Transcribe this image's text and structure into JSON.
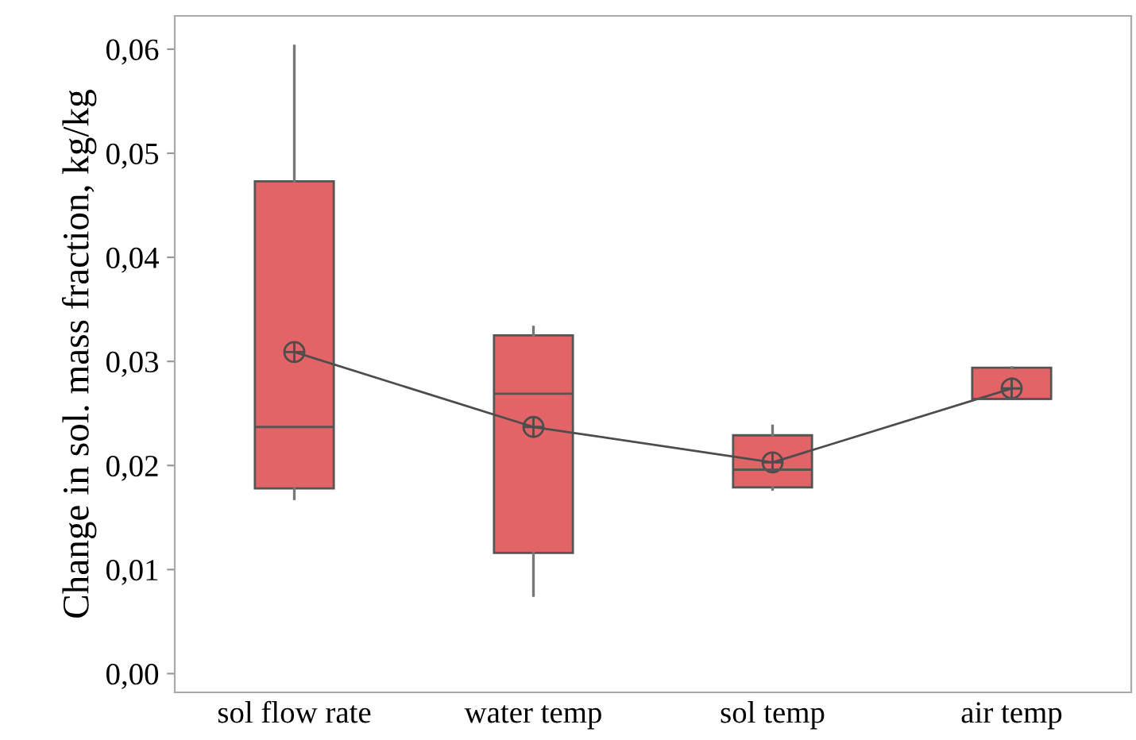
{
  "chart_data": {
    "type": "box",
    "ylabel": "Change in sol. mass fraction, kg/kg",
    "categories": [
      "sol flow rate",
      "water temp",
      "sol temp",
      "air temp"
    ],
    "color": "#e36466",
    "boxes": [
      {
        "low": 0.0168,
        "q1": 0.0178,
        "median": 0.0237,
        "q3": 0.0473,
        "high": 0.0603
      },
      {
        "low": 0.0075,
        "q1": 0.0116,
        "median": 0.0269,
        "q3": 0.0325,
        "high": 0.0333
      },
      {
        "low": 0.0177,
        "q1": 0.0179,
        "median": 0.0196,
        "q3": 0.0229,
        "high": 0.0238
      },
      {
        "low": 0.0264,
        "q1": 0.0264,
        "median": 0.0264,
        "q3": 0.0294,
        "high": 0.0294
      }
    ],
    "series": [
      {
        "type": "line",
        "color": "#4d4d4d",
        "marker": "circle",
        "x": [
          "sol flow rate",
          "water temp",
          "sol temp",
          "air temp"
        ],
        "values": [
          0.0309,
          0.0237,
          0.0203,
          0.0274
        ]
      }
    ],
    "ylim": [
      -0.0018,
      0.0632
    ],
    "yticks": [
      {
        "value": 0,
        "label": "0,00"
      },
      {
        "value": 0.01,
        "label": "0,01"
      },
      {
        "value": 0.02,
        "label": "0,02"
      },
      {
        "value": 0.03,
        "label": "0,03"
      },
      {
        "value": 0.04,
        "label": "0,04"
      },
      {
        "value": 0.05,
        "label": "0,05"
      },
      {
        "value": 0.06,
        "label": "0,06"
      }
    ],
    "grid": false
  }
}
